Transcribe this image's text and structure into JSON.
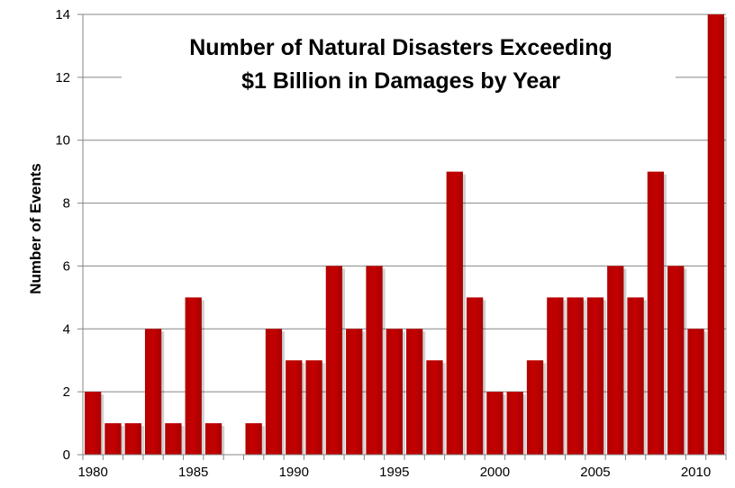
{
  "chart_data": {
    "type": "bar",
    "title_lines": [
      "Number of Natural Disasters Exceeding",
      "$1 Billion in Damages by Year"
    ],
    "xlabel": "",
    "ylabel": "Number of Events",
    "categories": [
      1980,
      1981,
      1982,
      1983,
      1984,
      1985,
      1986,
      1987,
      1988,
      1989,
      1990,
      1991,
      1992,
      1993,
      1994,
      1995,
      1996,
      1997,
      1998,
      1999,
      2000,
      2001,
      2002,
      2003,
      2004,
      2005,
      2006,
      2007,
      2008,
      2009,
      2010,
      2011
    ],
    "values": [
      2,
      1,
      1,
      4,
      1,
      5,
      1,
      0,
      1,
      4,
      3,
      3,
      6,
      4,
      6,
      4,
      4,
      3,
      9,
      5,
      2,
      2,
      3,
      5,
      5,
      5,
      6,
      5,
      9,
      6,
      4,
      14
    ],
    "x_tick_labels": [
      "1980",
      "1985",
      "1990",
      "1995",
      "2000",
      "2005",
      "2010"
    ],
    "x_tick_years": [
      1980,
      1985,
      1990,
      1995,
      2000,
      2005,
      2010
    ],
    "y_tick_labels": [
      "0",
      "2",
      "4",
      "6",
      "8",
      "10",
      "12",
      "14"
    ],
    "ylim": [
      0,
      14
    ],
    "grid": true,
    "legend": "none",
    "bar_color": "#C00000"
  }
}
